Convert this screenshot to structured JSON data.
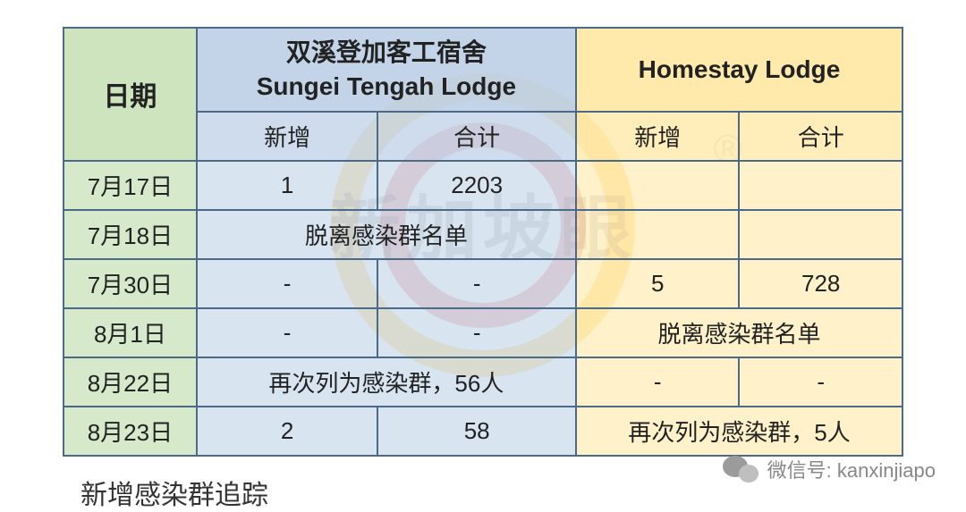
{
  "watermark": {
    "text": "新加坡眼",
    "registered": "®"
  },
  "table": {
    "type": "table",
    "border_color": "#4a6a88",
    "colors": {
      "date_bg": "#c4dfb4",
      "blue_bg": "#b9cde5",
      "yellow_bg": "#ffe69d"
    },
    "headers": {
      "date": "日期",
      "stl_cn": "双溪登加客工宿舍",
      "stl_en": "Sungei Tengah Lodge",
      "homestay": "Homestay Lodge",
      "sub_new": "新增",
      "sub_total": "合计"
    },
    "rows": [
      {
        "date": "7月17日",
        "stl_new": "1",
        "stl_total": "2203",
        "home_new": "",
        "home_total": ""
      },
      {
        "date": "7月18日",
        "stl_merged": "脱离感染群名单",
        "home_new": "",
        "home_total": ""
      },
      {
        "date": "7月30日",
        "stl_new": "-",
        "stl_total": "-",
        "home_new": "5",
        "home_total": "728"
      },
      {
        "date": "8月1日",
        "stl_new": "-",
        "stl_total": "-",
        "home_merged": "脱离感染群名单"
      },
      {
        "date": "8月22日",
        "stl_merged": "再次列为感染群，56人",
        "home_new": "-",
        "home_total": "-"
      },
      {
        "date": "8月23日",
        "stl_new": "2",
        "stl_total": "58",
        "home_merged": "再次列为感染群，5人"
      }
    ]
  },
  "caption": "新增感染群追踪",
  "attribution": {
    "label": "微信号:",
    "id": "kanxinjiapo"
  }
}
